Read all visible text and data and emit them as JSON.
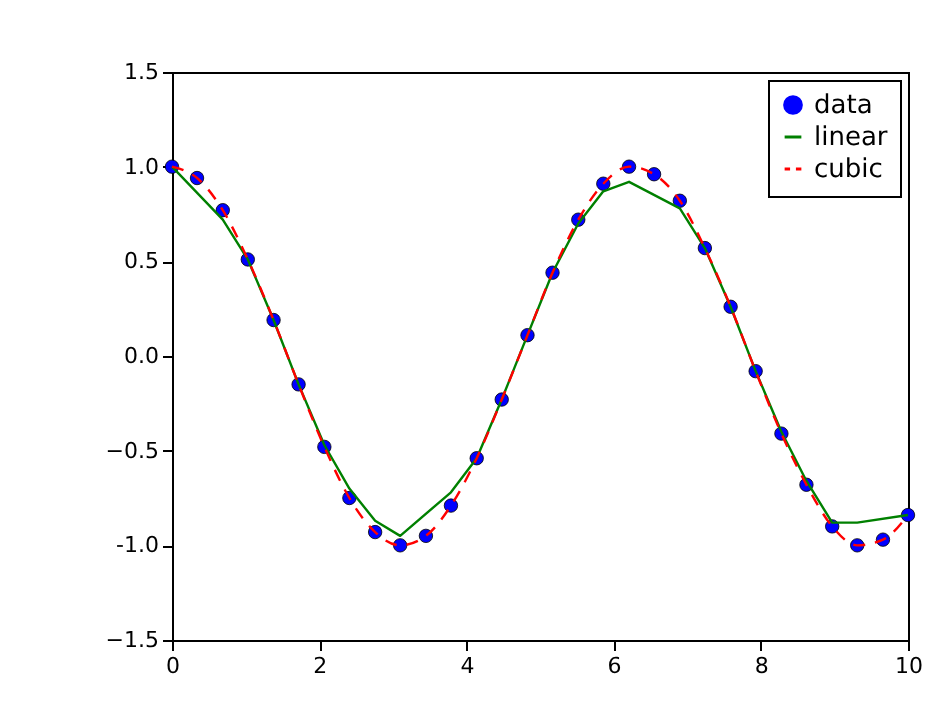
{
  "chart_data": {
    "type": "line",
    "xlim": [
      0,
      10
    ],
    "xticks": [
      0,
      2,
      4,
      6,
      8,
      10
    ],
    "ylim": [
      -1.5,
      1.5
    ],
    "yticks": [
      -1.5,
      {
        "value": -1,
        "label": "-1.0"
      },
      -0.5,
      {
        "value": 0,
        "label": "0.0"
      },
      0.5,
      {
        "value": 1,
        "label": "1.0"
      },
      1.5
    ],
    "grid": false,
    "legend": "top right",
    "series": [
      {
        "name": "data",
        "type": "scatter",
        "marker": "circle",
        "color": "#0000ff",
        "x": [
          0,
          0.34,
          0.69,
          1.03,
          1.38,
          1.72,
          2.07,
          2.41,
          2.76,
          3.1,
          3.45,
          3.79,
          4.14,
          4.48,
          4.83,
          5.17,
          5.52,
          5.86,
          6.21,
          6.55,
          6.9,
          7.24,
          7.59,
          7.93,
          8.28,
          8.62,
          8.97,
          9.31,
          9.66,
          10
        ],
        "values": [
          1.0,
          0.94,
          0.77,
          0.51,
          0.19,
          -0.15,
          -0.48,
          -0.75,
          -0.93,
          -1.0,
          -0.95,
          -0.79,
          -0.54,
          -0.23,
          0.11,
          0.44,
          0.72,
          0.91,
          1.0,
          0.96,
          0.82,
          0.57,
          0.26,
          -0.08,
          -0.41,
          -0.68,
          -0.9,
          -1.0,
          -0.97,
          -0.84
        ]
      },
      {
        "name": "linear",
        "type": "line",
        "line_style": "solid",
        "color": "#008000",
        "x": [
          0,
          0.69,
          1.03,
          1.38,
          1.72,
          2.07,
          2.41,
          2.76,
          3.1,
          3.79,
          4.14,
          4.48,
          4.83,
          5.17,
          5.52,
          5.86,
          6.21,
          6.9,
          7.24,
          7.59,
          7.93,
          8.28,
          8.62,
          8.97,
          9.31,
          10
        ],
        "values": [
          1.0,
          0.72,
          0.51,
          0.19,
          -0.15,
          -0.47,
          -0.7,
          -0.87,
          -0.95,
          -0.72,
          -0.54,
          -0.23,
          0.11,
          0.44,
          0.7,
          0.87,
          0.92,
          0.78,
          0.57,
          0.26,
          -0.08,
          -0.4,
          -0.66,
          -0.88,
          -0.88,
          -0.84
        ]
      },
      {
        "name": "cubic",
        "type": "line",
        "line_style": "dashed",
        "color": "#ff0000",
        "x": [
          0,
          0.34,
          0.69,
          1.03,
          1.38,
          1.72,
          2.07,
          2.41,
          2.76,
          3.1,
          3.45,
          3.79,
          4.14,
          4.48,
          4.83,
          5.17,
          5.52,
          5.86,
          6.21,
          6.55,
          6.9,
          7.24,
          7.59,
          7.93,
          8.28,
          8.62,
          8.97,
          9.31,
          9.66,
          10
        ],
        "values": [
          1.0,
          0.94,
          0.77,
          0.51,
          0.19,
          -0.15,
          -0.48,
          -0.75,
          -0.93,
          -1.0,
          -0.95,
          -0.79,
          -0.54,
          -0.23,
          0.11,
          0.44,
          0.72,
          0.91,
          1.0,
          0.96,
          0.82,
          0.57,
          0.26,
          -0.08,
          -0.41,
          -0.68,
          -0.9,
          -1.0,
          -0.97,
          -0.84
        ]
      }
    ]
  }
}
